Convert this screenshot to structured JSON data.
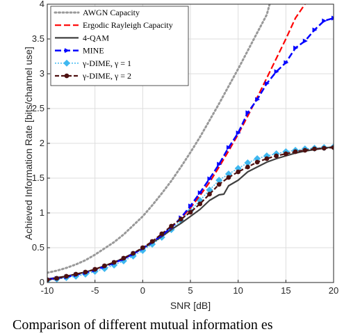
{
  "caption": "Comparison of different mutual information es",
  "chart_data": {
    "type": "line",
    "xlabel": "SNR [dB]",
    "ylabel": "Achieved Information Rate [bits/channel use]",
    "xlim": [
      -10,
      20
    ],
    "ylim": [
      0,
      4
    ],
    "xticks": [
      "-10",
      "-5",
      "0",
      "5",
      "10",
      "15",
      "20"
    ],
    "yticks": [
      "0",
      "0.5",
      "1",
      "1.5",
      "2",
      "2.5",
      "3",
      "3.5",
      "4"
    ],
    "grid": true,
    "legend_position": "top-left",
    "series": [
      {
        "name": "AWGN Capacity",
        "color": "#999999",
        "style": "dotted",
        "x": [
          -10,
          -9,
          -8,
          -7,
          -6,
          -5,
          -4,
          -3,
          -2,
          -1,
          0,
          1,
          2,
          3,
          4,
          5,
          6,
          7,
          8,
          9,
          10,
          11,
          12,
          13,
          13.3
        ],
        "y": [
          0.14,
          0.17,
          0.21,
          0.26,
          0.32,
          0.4,
          0.49,
          0.58,
          0.69,
          0.82,
          0.95,
          1.11,
          1.28,
          1.46,
          1.66,
          1.87,
          2.09,
          2.33,
          2.57,
          2.82,
          3.07,
          3.33,
          3.59,
          3.85,
          4.0
        ]
      },
      {
        "name": "Ergodic Rayleigh Capacity",
        "color": "#ff0000",
        "style": "dashed",
        "x": [
          -10,
          -9,
          -8,
          -7,
          -6,
          -5,
          -4,
          -3,
          -2,
          -1,
          0,
          1,
          2,
          3,
          4,
          5,
          6,
          7,
          8,
          9,
          10,
          11,
          12,
          13,
          14,
          15,
          16,
          17
        ],
        "y": [
          0.04,
          0.06,
          0.08,
          0.11,
          0.14,
          0.18,
          0.23,
          0.28,
          0.34,
          0.41,
          0.49,
          0.58,
          0.68,
          0.79,
          0.92,
          1.07,
          1.25,
          1.44,
          1.66,
          1.89,
          2.13,
          2.39,
          2.66,
          2.94,
          3.22,
          3.5,
          3.8,
          4.0
        ]
      },
      {
        "name": "4-QAM",
        "color": "#404040",
        "style": "solid",
        "x": [
          -10,
          -9,
          -8,
          -7,
          -6,
          -5,
          -4,
          -3,
          -2,
          -1,
          0,
          1,
          2,
          3,
          4,
          5,
          6,
          7,
          8,
          8.5,
          9,
          10,
          11,
          12,
          13,
          14,
          15,
          16,
          17,
          18,
          19,
          20
        ],
        "y": [
          0.05,
          0.07,
          0.09,
          0.12,
          0.15,
          0.19,
          0.24,
          0.29,
          0.35,
          0.42,
          0.49,
          0.57,
          0.66,
          0.76,
          0.85,
          0.95,
          1.05,
          1.18,
          1.26,
          1.27,
          1.39,
          1.47,
          1.59,
          1.66,
          1.73,
          1.78,
          1.82,
          1.86,
          1.89,
          1.91,
          1.93,
          1.95
        ]
      },
      {
        "name": "MINE",
        "color": "#0000ff",
        "style": "dashed",
        "x": [
          -10,
          -9,
          -8,
          -7,
          -6,
          -5,
          -4,
          -3,
          -2,
          -1,
          0,
          1,
          2,
          3,
          4,
          5,
          6,
          7,
          8,
          9,
          10,
          11,
          12,
          13,
          14,
          15,
          16,
          17,
          18,
          19,
          20
        ],
        "y": [
          0.05,
          0.06,
          0.08,
          0.11,
          0.14,
          0.18,
          0.23,
          0.28,
          0.34,
          0.41,
          0.49,
          0.58,
          0.68,
          0.79,
          0.93,
          1.1,
          1.29,
          1.49,
          1.7,
          1.94,
          2.15,
          2.44,
          2.63,
          2.86,
          3.03,
          3.16,
          3.37,
          3.47,
          3.63,
          3.76,
          3.8
        ]
      },
      {
        "name": "γ-DIME, γ = 1",
        "color": "#3fb8f0",
        "style": "dotted",
        "x": [
          -10,
          -9,
          -8,
          -7,
          -6,
          -5,
          -4,
          -3,
          -2,
          -1,
          0,
          1,
          2,
          3,
          4,
          5,
          6,
          7,
          8,
          9,
          10,
          11,
          12,
          13,
          14,
          15,
          16,
          17,
          18,
          19,
          20
        ],
        "y": [
          0.03,
          0.05,
          0.07,
          0.09,
          0.12,
          0.16,
          0.2,
          0.25,
          0.31,
          0.38,
          0.46,
          0.55,
          0.65,
          0.76,
          0.89,
          1.03,
          1.18,
          1.33,
          1.47,
          1.56,
          1.64,
          1.72,
          1.78,
          1.82,
          1.85,
          1.88,
          1.9,
          1.92,
          1.93,
          1.94,
          1.95
        ]
      },
      {
        "name": "γ-DIME, γ = 2",
        "color": "#4d1010",
        "style": "dashed",
        "x": [
          -10,
          -9,
          -8,
          -7,
          -6,
          -5,
          -4,
          -3,
          -2,
          -1,
          0,
          1,
          2,
          3,
          4,
          5,
          6,
          7,
          8,
          9,
          10,
          11,
          12,
          13,
          14,
          15,
          16,
          17,
          18,
          19,
          20
        ],
        "y": [
          0.04,
          0.06,
          0.09,
          0.12,
          0.15,
          0.19,
          0.24,
          0.29,
          0.35,
          0.42,
          0.5,
          0.59,
          0.7,
          0.81,
          0.91,
          1.01,
          1.13,
          1.27,
          1.41,
          1.51,
          1.59,
          1.66,
          1.73,
          1.78,
          1.82,
          1.85,
          1.88,
          1.9,
          1.92,
          1.93,
          1.94
        ]
      }
    ]
  }
}
